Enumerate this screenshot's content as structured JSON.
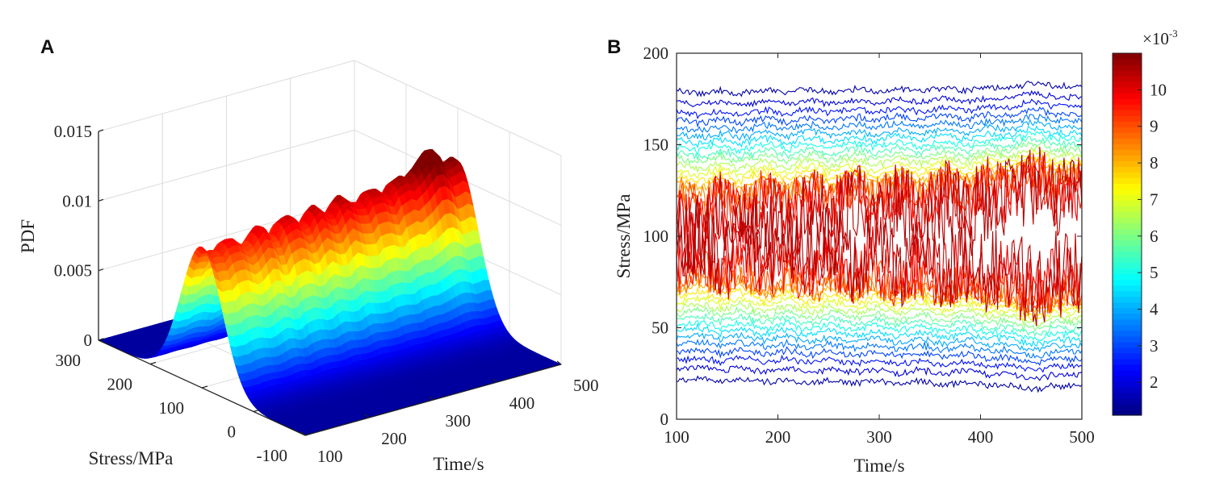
{
  "chart_data": [
    {
      "panel": "A",
      "type": "surface",
      "xlabel": "Time/s",
      "ylabel": "Stress/MPa",
      "zlabel": "PDF",
      "xlim": [
        100,
        500
      ],
      "ylim": [
        -100,
        300
      ],
      "zlim": [
        0,
        0.015
      ],
      "xticks": [
        "100",
        "200",
        "300",
        "400",
        "500"
      ],
      "yticks": [
        "-100",
        "0",
        "100",
        "200",
        "300"
      ],
      "zticks": [
        "0",
        "0.005",
        "0.01",
        "0.015"
      ],
      "grid": true,
      "colormap": "jet",
      "pdf_profile": {
        "stress": [
          -100,
          -75,
          -50,
          -25,
          0,
          25,
          50,
          75,
          100,
          125,
          150,
          175,
          200,
          225,
          250,
          275,
          300
        ],
        "pdf": [
          0,
          0,
          0,
          2e-05,
          0.00045,
          0.00176,
          0.0047,
          0.0084,
          0.0102,
          0.0084,
          0.0047,
          0.00176,
          0.00045,
          2e-05,
          0,
          0,
          0
        ]
      },
      "peak_pdf_by_time": {
        "time": [
          100,
          200,
          300,
          400,
          460,
          500
        ],
        "pdf": [
          0.0097,
          0.0101,
          0.0104,
          0.0108,
          0.0125,
          0.011
        ]
      }
    },
    {
      "panel": "B",
      "type": "contour",
      "xlabel": "Time/s",
      "ylabel": "Stress/MPa",
      "xlim": [
        100,
        500
      ],
      "ylim": [
        0,
        200
      ],
      "xticks": [
        "100",
        "200",
        "300",
        "400",
        "500"
      ],
      "yticks": [
        "0",
        "50",
        "100",
        "150",
        "200"
      ],
      "colormap": "jet",
      "levels": [
        0.0015,
        0.002,
        0.0025,
        0.003,
        0.0035,
        0.004,
        0.0045,
        0.005,
        0.0055,
        0.006,
        0.0065,
        0.007,
        0.0075,
        0.008,
        0.0085,
        0.009,
        0.0095,
        0.01,
        0.0105
      ],
      "colorbar": {
        "clim": [
          0.0011,
          0.011
        ],
        "ticks": [
          "2",
          "3",
          "4",
          "5",
          "6",
          "7",
          "8",
          "9",
          "10"
        ],
        "multiplier": "×10",
        "exponent": "-3"
      }
    }
  ],
  "panels": {
    "a": "A",
    "b": "B"
  }
}
